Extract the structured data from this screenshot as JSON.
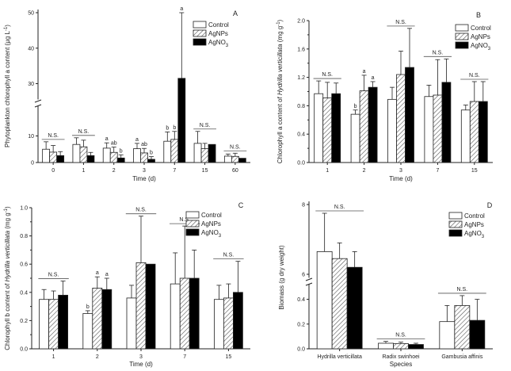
{
  "chart_data": [
    {
      "panel": "A",
      "type": "bar",
      "title": "",
      "xlabel": "Time (d)",
      "ylabel_parts": [
        "Phytoplankton chlorophyll a content (",
        "μ",
        "g L",
        "-1",
        ")"
      ],
      "ylabel": "Phytoplankton chlorophyll a content (μg L-1)",
      "categories": [
        "0",
        "1",
        "2",
        "3",
        "7",
        "15",
        "60"
      ],
      "axis_break": {
        "lower": [
          0,
          17
        ],
        "upper": [
          29,
          50
        ]
      },
      "yticks_lower": [
        "0",
        "10"
      ],
      "yticks_upper": [
        "30",
        "40",
        "50"
      ],
      "series": [
        {
          "name": "Control",
          "values": [
            5.0,
            6.8,
            5.4,
            5.2,
            8.0,
            7.2,
            2.4
          ],
          "errors": [
            2.8,
            2.5,
            2.0,
            2.0,
            3.5,
            4.5,
            0.8
          ]
        },
        {
          "name": "AgNPs",
          "values": [
            3.9,
            5.9,
            3.8,
            3.6,
            8.7,
            5.2,
            2.3
          ],
          "errors": [
            2.5,
            2.5,
            2.0,
            1.7,
            3.0,
            2.0,
            1.2
          ]
        },
        {
          "name": "AgNO3",
          "values": [
            2.6,
            2.6,
            1.7,
            1.2,
            31.5,
            6.8,
            1.6
          ],
          "errors": [
            1.5,
            1.2,
            1.2,
            1.0,
            18.5,
            0,
            0
          ]
        }
      ],
      "annotations": [
        {
          "group": 0,
          "text": "N.S."
        },
        {
          "group": 1,
          "text": "N.S."
        },
        {
          "group": 2,
          "series": 0,
          "text": "a"
        },
        {
          "group": 2,
          "series": 1,
          "text": "ab"
        },
        {
          "group": 2,
          "series": 2,
          "text": "b"
        },
        {
          "group": 3,
          "series": 0,
          "text": "a"
        },
        {
          "group": 3,
          "series": 1,
          "text": "ab"
        },
        {
          "group": 3,
          "series": 2,
          "text": "b"
        },
        {
          "group": 4,
          "series": 0,
          "text": "b"
        },
        {
          "group": 4,
          "series": 1,
          "text": "b"
        },
        {
          "group": 4,
          "series": 2,
          "text": "a"
        },
        {
          "group": 5,
          "text": "N.S."
        },
        {
          "group": 6,
          "text": "N.S."
        }
      ],
      "legend": [
        {
          "text": "Control"
        },
        {
          "text": "AgNPs"
        },
        {
          "text": "AgNO",
          "sub": "3"
        }
      ],
      "legend_position": "top-right"
    },
    {
      "panel": "B",
      "type": "bar",
      "title": "",
      "xlabel": "Time (d)",
      "ylabel_parts": [
        "Chlorophyll a content of ",
        "Hydrilla verticillata",
        " (mg g",
        "-1",
        ")"
      ],
      "ylabel": "Chlorophyll a content of Hydrilla verticillata (mg g-1)",
      "categories": [
        "1",
        "2",
        "3",
        "7",
        "15"
      ],
      "ylim": [
        0,
        2.0
      ],
      "yticks": [
        "0.0",
        "0.4",
        "0.8",
        "1.2",
        "1.6",
        "2.0"
      ],
      "series": [
        {
          "name": "Control",
          "values": [
            0.97,
            0.68,
            0.89,
            0.93,
            0.74
          ],
          "errors": [
            0.18,
            0.06,
            0.17,
            0.16,
            0.07
          ]
        },
        {
          "name": "AgNPs",
          "values": [
            0.91,
            1.01,
            1.24,
            0.95,
            0.86
          ],
          "errors": [
            0.22,
            0.22,
            0.33,
            0.5,
            0.28
          ]
        },
        {
          "name": "AgNO3",
          "values": [
            0.97,
            1.06,
            1.34,
            1.13,
            0.86
          ],
          "errors": [
            0.15,
            0.08,
            0.55,
            0.33,
            0.28
          ]
        }
      ],
      "annotations": [
        {
          "group": 0,
          "text": "N.S."
        },
        {
          "group": 1,
          "series": 0,
          "text": "b"
        },
        {
          "group": 1,
          "series": 1,
          "text": "a"
        },
        {
          "group": 1,
          "series": 2,
          "text": "a"
        },
        {
          "group": 2,
          "text": "N.S."
        },
        {
          "group": 3,
          "text": "N.S."
        },
        {
          "group": 4,
          "text": "N.S."
        }
      ],
      "legend": [
        {
          "text": "Control"
        },
        {
          "text": "AgNPs"
        },
        {
          "text": "AgNO",
          "sub": "3"
        }
      ],
      "legend_position": "top-right"
    },
    {
      "panel": "C",
      "type": "bar",
      "title": "",
      "xlabel": "Time (d)",
      "ylabel_parts": [
        "Chlorophyll b content of ",
        "Hydrilla verticillata",
        " (mg g",
        "-1",
        ")"
      ],
      "ylabel": "Chlorophyll b content of Hydrilla verticillata (mg g-1)",
      "categories": [
        "1",
        "2",
        "3",
        "7",
        "15"
      ],
      "ylim": [
        0,
        1.0
      ],
      "yticks": [
        "0.0",
        "0.2",
        "0.4",
        "0.6",
        "0.8",
        "1.0"
      ],
      "series": [
        {
          "name": "Control",
          "values": [
            0.35,
            0.25,
            0.36,
            0.46,
            0.35
          ],
          "errors": [
            0.07,
            0.02,
            0.09,
            0.22,
            0.1
          ]
        },
        {
          "name": "AgNPs",
          "values": [
            0.35,
            0.43,
            0.61,
            0.5,
            0.36
          ],
          "errors": [
            0.06,
            0.08,
            0.33,
            0.37,
            0.1
          ]
        },
        {
          "name": "AgNO3",
          "values": [
            0.38,
            0.42,
            0.6,
            0.5,
            0.4
          ],
          "errors": [
            0.1,
            0.08,
            0,
            0.2,
            0.22
          ]
        }
      ],
      "annotations": [
        {
          "group": 0,
          "text": "N.S."
        },
        {
          "group": 1,
          "series": 0,
          "text": "b"
        },
        {
          "group": 1,
          "series": 1,
          "text": "a"
        },
        {
          "group": 1,
          "series": 2,
          "text": "a"
        },
        {
          "group": 2,
          "text": "N.S."
        },
        {
          "group": 3,
          "text": "N.S."
        },
        {
          "group": 4,
          "text": "N.S."
        }
      ],
      "legend": [
        {
          "text": "Control"
        },
        {
          "text": "AgNPs"
        },
        {
          "text": "AgNO",
          "sub": "3"
        }
      ],
      "legend_position": "top-right"
    },
    {
      "panel": "D",
      "type": "bar",
      "title": "",
      "xlabel": "Species",
      "ylabel_parts": [
        "Biomass (g dry weight)"
      ],
      "ylabel": "Biomass (g dry weight)",
      "categories": [
        "Hydrilla verticillata",
        "Radix swinhoei",
        "Gambusia affinis"
      ],
      "axis_break": {
        "lower": [
          0,
          0.5
        ],
        "upper": [
          6,
          8
        ]
      },
      "yticks_lower": [
        "0.0",
        "0.2",
        "0.4"
      ],
      "yticks_upper": [
        "6",
        "8"
      ],
      "series": [
        {
          "name": "Control",
          "values": [
            6.65,
            0.045,
            0.22
          ],
          "errors": [
            1.1,
            0.015,
            0.13
          ]
        },
        {
          "name": "AgNPs",
          "values": [
            6.45,
            0.042,
            0.35
          ],
          "errors": [
            0.45,
            0.012,
            0.08
          ]
        },
        {
          "name": "AgNO3",
          "values": [
            6.2,
            0.035,
            0.23
          ],
          "errors": [
            0.45,
            0.01,
            0.17
          ]
        }
      ],
      "annotations": [
        {
          "group": 0,
          "text": "N.S."
        },
        {
          "group": 1,
          "text": "N.S."
        },
        {
          "group": 2,
          "text": "N.S."
        }
      ],
      "legend": [
        {
          "text": "Control"
        },
        {
          "text": "AgNPs"
        },
        {
          "text": "AgNO",
          "sub": "3"
        }
      ],
      "legend_position": "top-right"
    }
  ],
  "colors": {
    "axis": "#222222",
    "bar_fill_control": "#ffffff",
    "bar_fill_agno3": "#000000",
    "hatch": "#555555"
  }
}
